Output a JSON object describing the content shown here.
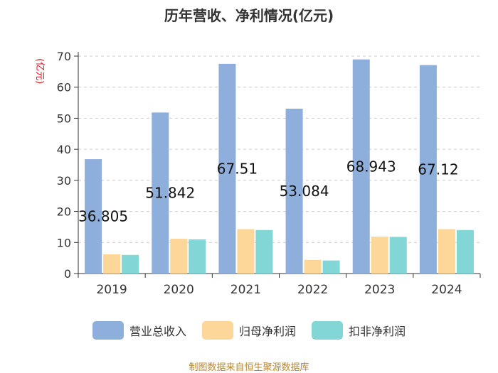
{
  "title": "历年营收、净利情况(亿元)",
  "source": "制图数据来自恒生聚源数据库",
  "colors": {
    "revenue": "#8eaedc",
    "net_profit": "#fdd79a",
    "deducted_profit": "#82d6d6",
    "unit_label": "#e0141c"
  },
  "chart_data": {
    "type": "bar",
    "title": "历年营收、净利情况(亿元)",
    "ylabel": "(亿元)",
    "xlabel": "",
    "ylim": [
      0,
      70
    ],
    "yticks": [
      0,
      10,
      20,
      30,
      40,
      50,
      60,
      70
    ],
    "categories": [
      "2019",
      "2020",
      "2021",
      "2022",
      "2023",
      "2024"
    ],
    "series": [
      {
        "name": "营业总收入",
        "values": [
          36.805,
          51.842,
          67.51,
          53.084,
          68.943,
          67.12
        ]
      },
      {
        "name": "归母净利润",
        "values": [
          6.2,
          11.2,
          14.3,
          4.4,
          11.9,
          14.3
        ]
      },
      {
        "name": "扣非净利润",
        "values": [
          6.0,
          11.0,
          14.0,
          4.2,
          11.8,
          14.0
        ]
      }
    ],
    "data_labels": [
      "36.805",
      "51.842",
      "67.51",
      "53.084",
      "68.943",
      "67.12"
    ],
    "legend_position": "bottom"
  }
}
